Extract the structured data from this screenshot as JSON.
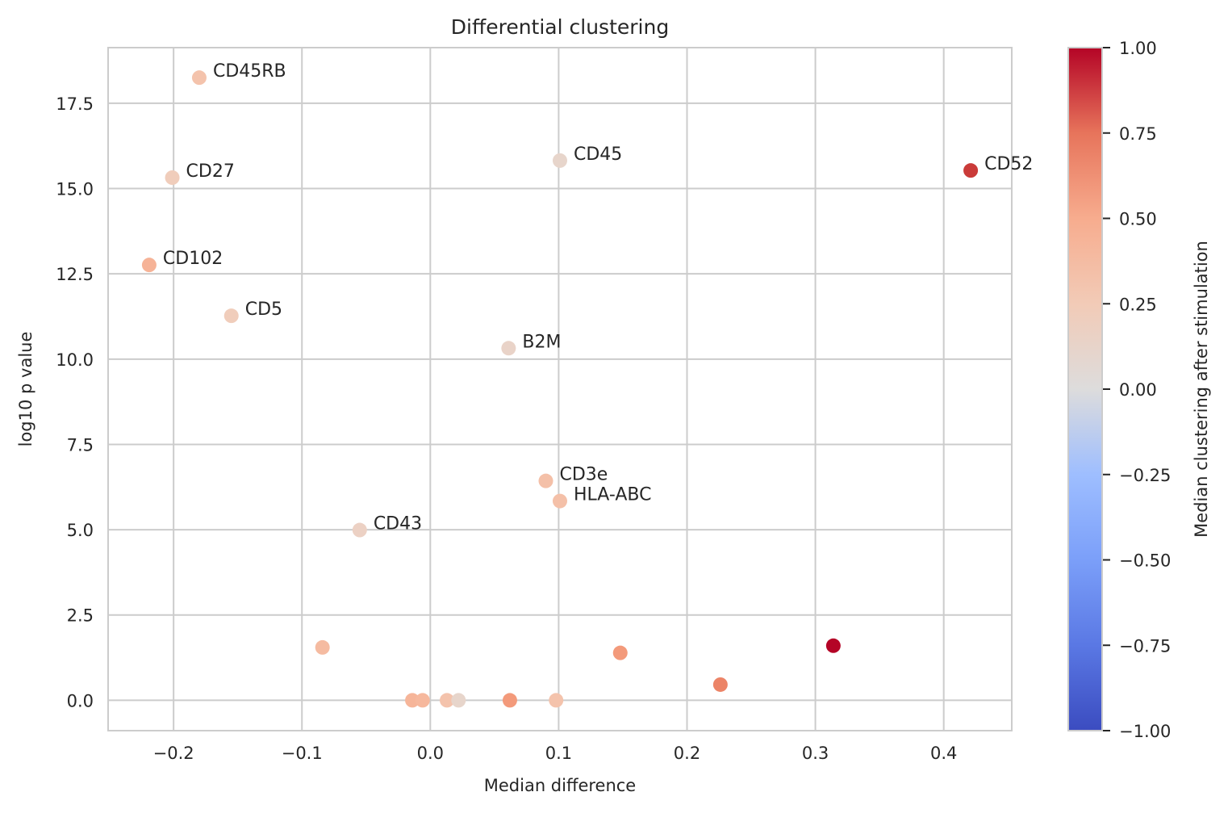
{
  "chart_data": {
    "type": "scatter",
    "title": "Differential clustering",
    "xlabel": "Median difference",
    "ylabel": "log10 p value",
    "xlim": [
      -0.251,
      0.453
    ],
    "ylim": [
      -0.89,
      19.13
    ],
    "grid": true,
    "x_ticks": [
      -0.2,
      -0.1,
      0.0,
      0.1,
      0.2,
      0.3,
      0.4
    ],
    "x_tick_labels": [
      "−0.2",
      "−0.1",
      "0.0",
      "0.1",
      "0.2",
      "0.3",
      "0.4"
    ],
    "y_ticks": [
      0.0,
      2.5,
      5.0,
      7.5,
      10.0,
      12.5,
      15.0,
      17.5
    ],
    "y_tick_labels": [
      "0.0",
      "2.5",
      "5.0",
      "7.5",
      "10.0",
      "12.5",
      "15.0",
      "17.5"
    ],
    "colorbar": {
      "label": "Median clustering after stimulation",
      "colormap": "coolwarm",
      "range": [
        -1.0,
        1.0
      ],
      "ticks": [
        1.0,
        0.75,
        0.5,
        0.25,
        0.0,
        -0.25,
        -0.5,
        -0.75,
        -1.0
      ],
      "tick_labels": [
        "1.00",
        "0.75",
        "0.50",
        "0.25",
        "0.00",
        "−0.25",
        "−0.50",
        "−0.75",
        "−1.00"
      ]
    },
    "points": [
      {
        "label": "CD45RB",
        "x": -0.18,
        "y": 18.25,
        "c": 0.3
      },
      {
        "label": "CD27",
        "x": -0.201,
        "y": 15.32,
        "c": 0.22
      },
      {
        "label": "CD102",
        "x": -0.219,
        "y": 12.76,
        "c": 0.42
      },
      {
        "label": "CD5",
        "x": -0.155,
        "y": 11.27,
        "c": 0.22
      },
      {
        "label": "B2M",
        "x": 0.061,
        "y": 10.32,
        "c": 0.12
      },
      {
        "label": "CD45",
        "x": 0.101,
        "y": 15.82,
        "c": 0.1
      },
      {
        "label": "CD52",
        "x": 0.421,
        "y": 15.53,
        "c": 0.9
      },
      {
        "label": "CD3e",
        "x": 0.09,
        "y": 6.43,
        "c": 0.32
      },
      {
        "label": "HLA-ABC",
        "x": 0.101,
        "y": 5.84,
        "c": 0.32
      },
      {
        "label": "CD43",
        "x": -0.055,
        "y": 4.99,
        "c": 0.15
      },
      {
        "label": "",
        "x": -0.084,
        "y": 1.55,
        "c": 0.35
      },
      {
        "label": "",
        "x": 0.148,
        "y": 1.39,
        "c": 0.58
      },
      {
        "label": "",
        "x": 0.226,
        "y": 0.46,
        "c": 0.68
      },
      {
        "label": "",
        "x": 0.314,
        "y": 1.6,
        "c": 1.0
      },
      {
        "label": "",
        "x": -0.014,
        "y": 0.0,
        "c": 0.4
      },
      {
        "label": "",
        "x": -0.006,
        "y": 0.0,
        "c": 0.37
      },
      {
        "label": "",
        "x": 0.013,
        "y": 0.0,
        "c": 0.3
      },
      {
        "label": "",
        "x": 0.022,
        "y": 0.0,
        "c": 0.1
      },
      {
        "label": "",
        "x": 0.062,
        "y": 0.0,
        "c": 0.58
      },
      {
        "label": "",
        "x": 0.098,
        "y": 0.0,
        "c": 0.3
      }
    ]
  },
  "colors": {
    "grid": "#cccccc",
    "text": "#262626",
    "frame": "#cccccc"
  }
}
